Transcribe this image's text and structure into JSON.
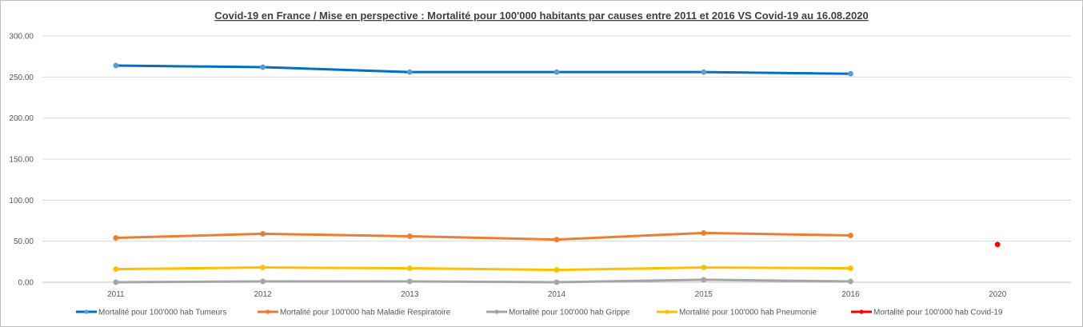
{
  "chart_data": {
    "type": "line",
    "title": "Covid-19 en France / Mise en perspective : Mortalité pour 100'000 habitants par causes entre 2011 et 2016 VS Covid-19 au 16.08.2020",
    "categories": [
      "2011",
      "2012",
      "2013",
      "2014",
      "2015",
      "2016",
      "2020"
    ],
    "y_ticks": [
      "0.00",
      "50.00",
      "100.00",
      "150.00",
      "200.00",
      "250.00",
      "300.00"
    ],
    "ylim": [
      0,
      300
    ],
    "grid": true,
    "legend_position": "bottom",
    "series": [
      {
        "name": "Mortalité pour 100'000 hab Tumeurs",
        "color": "#0070c0",
        "marker_color": "#5b9bd5",
        "values": [
          264,
          262,
          256,
          256,
          256,
          254,
          null
        ]
      },
      {
        "name": "Mortalité pour 100'000 hab Maladie Respiratoire",
        "color": "#ed7d31",
        "marker_color": "#ed7d31",
        "values": [
          54,
          59,
          56,
          52,
          60,
          57,
          null
        ]
      },
      {
        "name": "Mortalité pour 100'000 hab Grippe",
        "color": "#a5a5a5",
        "marker_color": "#a5a5a5",
        "values": [
          0,
          1,
          1,
          0,
          3,
          1,
          null
        ]
      },
      {
        "name": "Mortalité pour 100'000 hab Pneumonie",
        "color": "#ffc000",
        "marker_color": "#ffc000",
        "values": [
          16,
          18,
          17,
          15,
          18,
          17,
          null
        ]
      },
      {
        "name": "Mortalité pour 100'000 hab Covid-19",
        "color": "#ff0000",
        "marker_color": "#ff0000",
        "values": [
          null,
          null,
          null,
          null,
          null,
          null,
          46
        ]
      }
    ]
  }
}
